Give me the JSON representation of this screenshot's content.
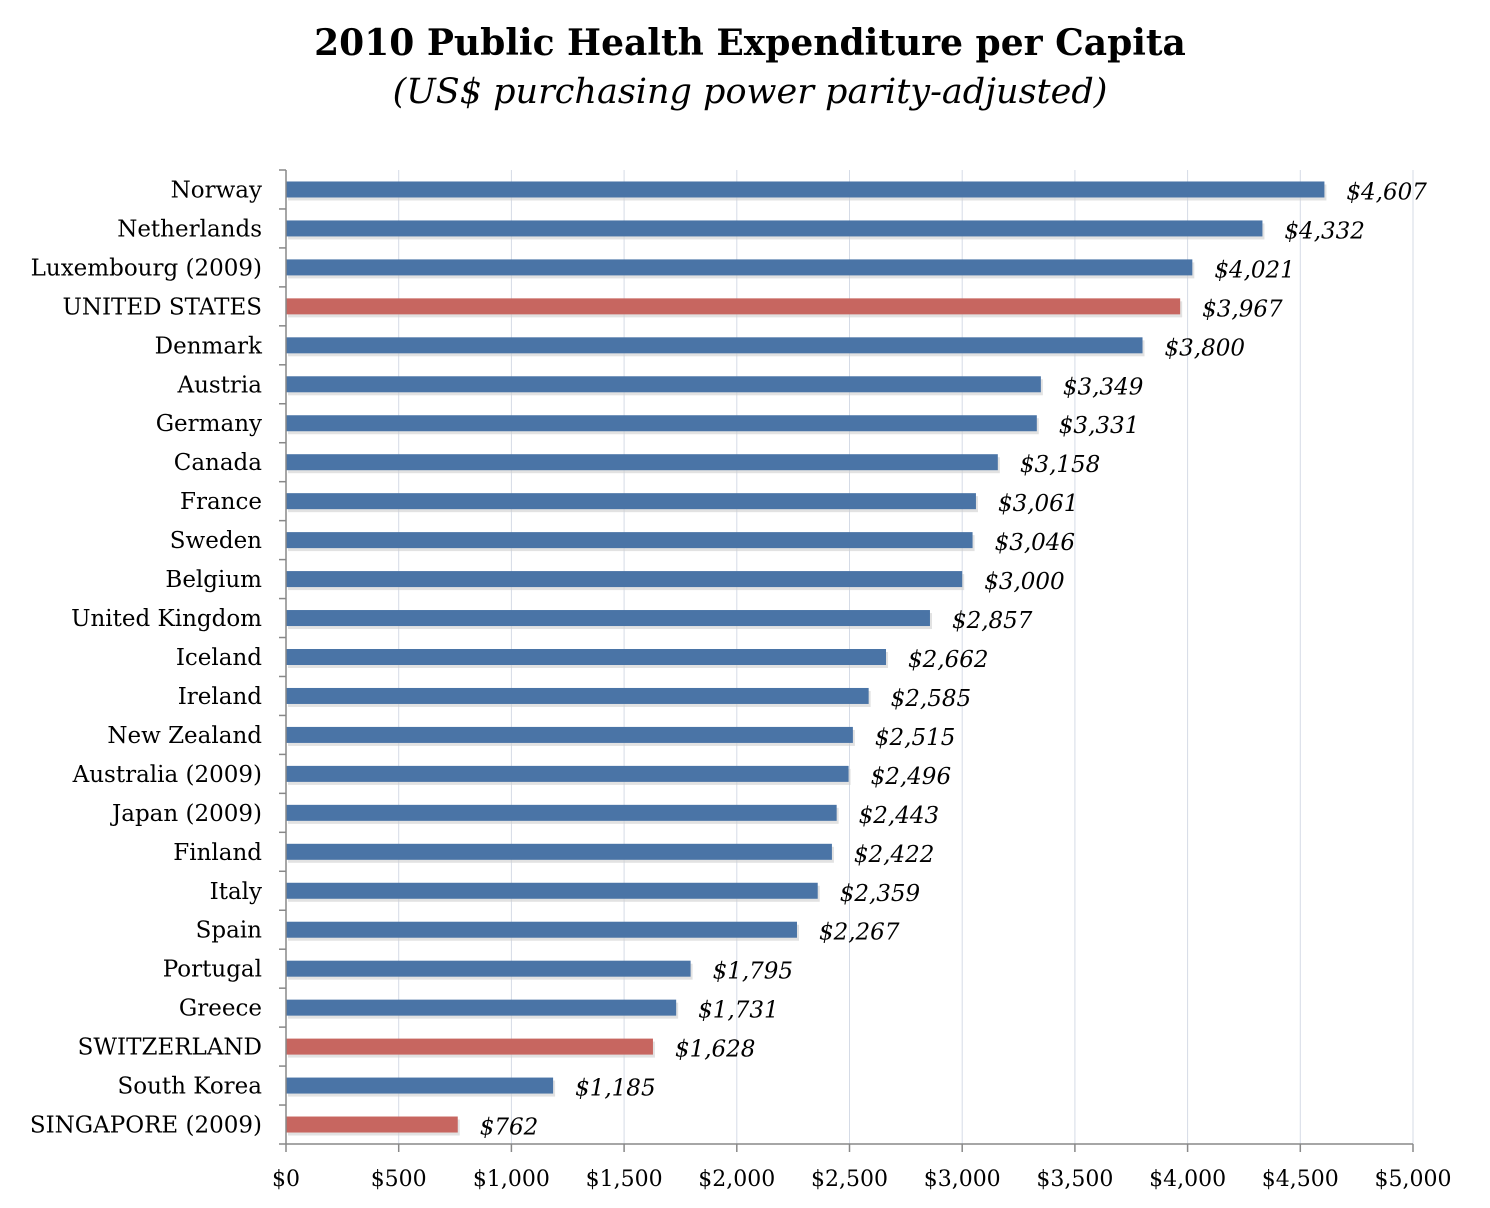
{
  "title": "2010 Public Health Expenditure per Capita",
  "subtitle": "(US$ purchasing power parity-adjusted)",
  "colors": {
    "default": "#4a74a6",
    "highlight": "#c76660"
  },
  "chart_data": {
    "type": "bar",
    "orientation": "horizontal",
    "title": "2010 Public Health Expenditure per Capita",
    "subtitle": "(US$ purchasing power parity-adjusted)",
    "xlabel": "",
    "ylabel": "",
    "xlim": [
      0,
      5000
    ],
    "grid": true,
    "categories": [
      "Norway",
      "Netherlands",
      "Luxembourg (2009)",
      "UNITED STATES",
      "Denmark",
      "Austria",
      "Germany",
      "Canada",
      "France",
      "Sweden",
      "Belgium",
      "United Kingdom",
      "Iceland",
      "Ireland",
      "New Zealand",
      "Australia (2009)",
      "Japan (2009)",
      "Finland",
      "Italy",
      "Spain",
      "Portugal",
      "Greece",
      "SWITZERLAND",
      "South Korea",
      "SINGAPORE (2009)"
    ],
    "values": [
      4607,
      4332,
      4021,
      3967,
      3800,
      3349,
      3331,
      3158,
      3061,
      3046,
      3000,
      2857,
      2662,
      2585,
      2515,
      2496,
      2443,
      2422,
      2359,
      2267,
      1795,
      1731,
      1628,
      1185,
      762
    ],
    "value_labels": [
      "$4,607",
      "$4,332",
      "$4,021",
      "$3,967",
      "$3,800",
      "$3,349",
      "$3,331",
      "$3,158",
      "$3,061",
      "$3,046",
      "$3,000",
      "$2,857",
      "$2,662",
      "$2,585",
      "$2,515",
      "$2,496",
      "$2,443",
      "$2,422",
      "$2,359",
      "$2,267",
      "$1,795",
      "$1,731",
      "$1,628",
      "$1,185",
      "$762"
    ],
    "highlighted": [
      "UNITED STATES",
      "SWITZERLAND",
      "SINGAPORE (2009)"
    ],
    "x_ticks": [
      0,
      500,
      1000,
      1500,
      2000,
      2500,
      3000,
      3500,
      4000,
      4500,
      5000
    ],
    "x_tick_labels": [
      "$0",
      "$500",
      "$1,000",
      "$1,500",
      "$2,000",
      "$2,500",
      "$3,000",
      "$3,500",
      "$4,000",
      "$4,500",
      "$5,000"
    ]
  }
}
